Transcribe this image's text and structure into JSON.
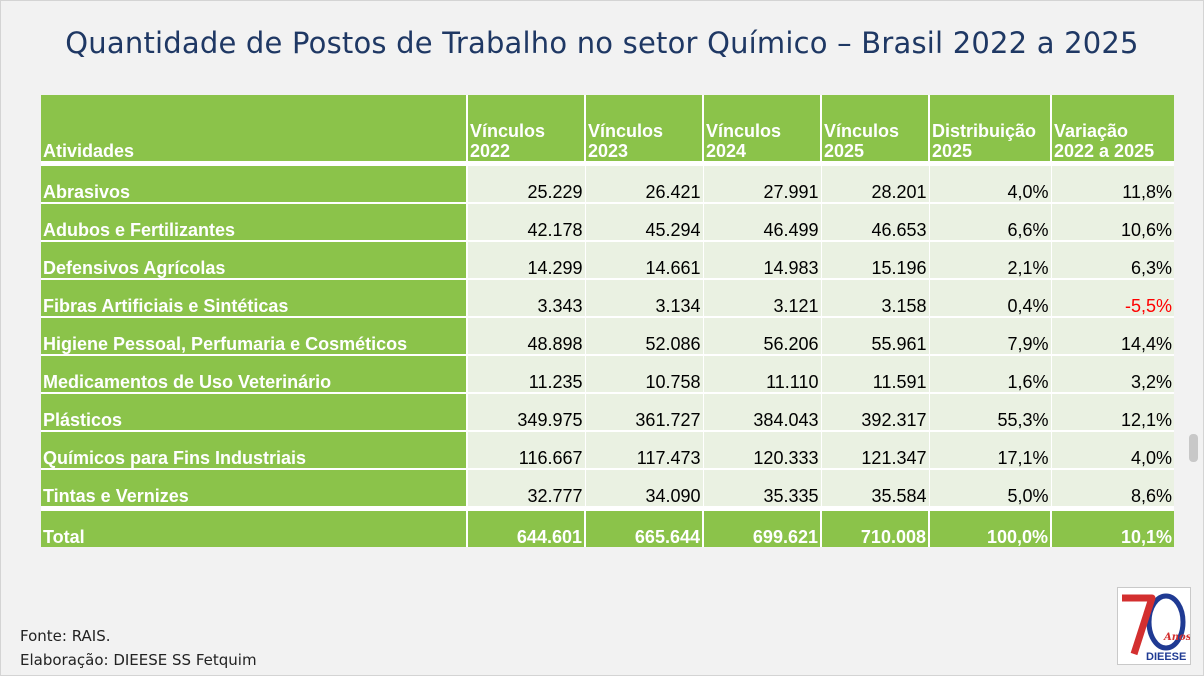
{
  "title": "Quantidade de Postos de Trabalho no setor Químico – Brasil 2022 a 2025",
  "table": {
    "headers": [
      {
        "line1": "Atividades",
        "line2": ""
      },
      {
        "line1": "Vínculos",
        "line2": "2022"
      },
      {
        "line1": "Vínculos",
        "line2": "2023"
      },
      {
        "line1": "Vínculos",
        "line2": "2024"
      },
      {
        "line1": "Vínculos",
        "line2": "2025"
      },
      {
        "line1": "Distribuição",
        "line2": "2025"
      },
      {
        "line1": "Variação",
        "line2": "2022 a 2025"
      }
    ],
    "rows": [
      {
        "atividade": "Abrasivos",
        "v2022": "25.229",
        "v2023": "26.421",
        "v2024": "27.991",
        "v2025": "28.201",
        "dist": "4,0%",
        "var": "11,8%",
        "var_negative": false
      },
      {
        "atividade": "Adubos e Fertilizantes",
        "v2022": "42.178",
        "v2023": "45.294",
        "v2024": "46.499",
        "v2025": "46.653",
        "dist": "6,6%",
        "var": "10,6%",
        "var_negative": false
      },
      {
        "atividade": "Defensivos Agrícolas",
        "v2022": "14.299",
        "v2023": "14.661",
        "v2024": "14.983",
        "v2025": "15.196",
        "dist": "2,1%",
        "var": "6,3%",
        "var_negative": false
      },
      {
        "atividade": "Fibras Artificiais e Sintéticas",
        "v2022": "3.343",
        "v2023": "3.134",
        "v2024": "3.121",
        "v2025": "3.158",
        "dist": "0,4%",
        "var": "-5,5%",
        "var_negative": true
      },
      {
        "atividade": "Higiene Pessoal, Perfumaria e Cosméticos",
        "v2022": "48.898",
        "v2023": "52.086",
        "v2024": "56.206",
        "v2025": "55.961",
        "dist": "7,9%",
        "var": "14,4%",
        "var_negative": false
      },
      {
        "atividade": "Medicamentos de Uso Veterinário",
        "v2022": "11.235",
        "v2023": "10.758",
        "v2024": "11.110",
        "v2025": "11.591",
        "dist": "1,6%",
        "var": "3,2%",
        "var_negative": false
      },
      {
        "atividade": "Plásticos",
        "v2022": "349.975",
        "v2023": "361.727",
        "v2024": "384.043",
        "v2025": "392.317",
        "dist": "55,3%",
        "var": "12,1%",
        "var_negative": false
      },
      {
        "atividade": "Químicos para Fins Industriais",
        "v2022": "116.667",
        "v2023": "117.473",
        "v2024": "120.333",
        "v2025": "121.347",
        "dist": "17,1%",
        "var": "4,0%",
        "var_negative": false
      },
      {
        "atividade": "Tintas e Vernizes",
        "v2022": "32.777",
        "v2023": "34.090",
        "v2024": "35.335",
        "v2025": "35.584",
        "dist": "5,0%",
        "var": "8,6%",
        "var_negative": false
      }
    ],
    "total": {
      "atividade": "Total",
      "v2022": "644.601",
      "v2023": "665.644",
      "v2024": "699.621",
      "v2025": "710.008",
      "dist": "100,0%",
      "var": "10,1%"
    }
  },
  "source": {
    "fonte": "Fonte: RAIS.",
    "elaboracao": "Elaboração: DIEESE SS Fetquim"
  },
  "logo": {
    "number": "70",
    "anos": "Anos",
    "org": "DIEESE"
  },
  "colors": {
    "header_green": "#8bc34a",
    "cell_bg": "#eaf1e2",
    "title_blue": "#1f3864",
    "negative_red": "#ff0000"
  }
}
